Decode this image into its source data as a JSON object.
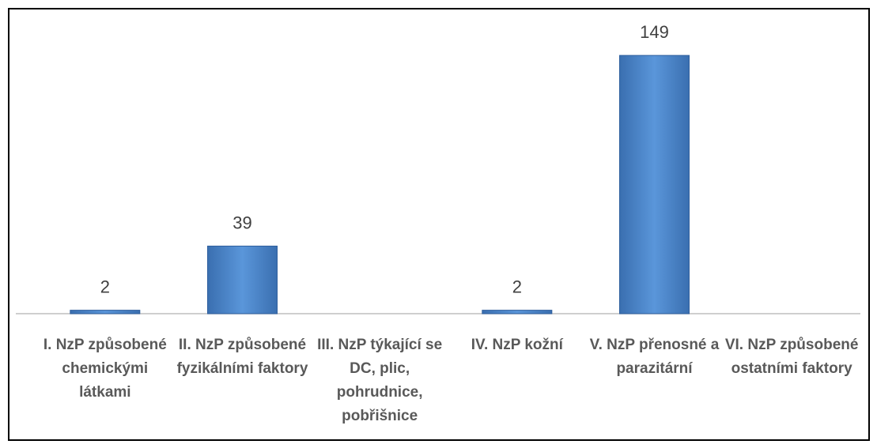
{
  "chart_data": {
    "type": "bar",
    "categories": [
      "I. NzP způsobené chemickými látkami",
      "II. NzP způsobené fyzikálními faktory",
      "III. NzP týkající se DC, plic, pohrudnice, pobřišnice",
      "IV. NzP kožní",
      "V. NzP přenosné a parazitární",
      "VI. NzP způsobené ostatními faktory"
    ],
    "values": [
      2,
      39,
      null,
      2,
      149,
      null
    ],
    "color": "#4a84c8",
    "ylim": [
      0,
      160
    ]
  }
}
